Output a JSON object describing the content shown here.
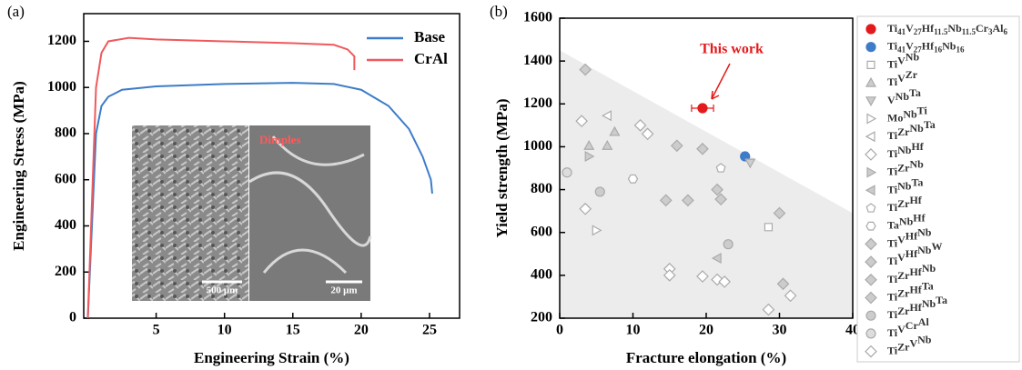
{
  "chart_data": [
    {
      "type": "line",
      "panel": "(a)",
      "xlabel": "Engineering Strain (%)",
      "ylabel": "Engineering Stress (MPa)",
      "xlim": [
        -0.3,
        27.2
      ],
      "ylim": [
        0,
        1320
      ],
      "xticks": [
        5,
        10,
        15,
        20,
        25
      ],
      "yticks": [
        0,
        200,
        400,
        600,
        800,
        1000,
        1200
      ],
      "series": [
        {
          "name": "Base",
          "color": "#3d7cc9",
          "x": [
            0,
            0.3,
            0.6,
            1,
            1.5,
            2.5,
            5,
            10,
            15,
            18,
            20,
            22,
            23.5,
            24.5,
            25.1,
            25.2
          ],
          "values": [
            0,
            400,
            800,
            920,
            960,
            990,
            1005,
            1015,
            1020,
            1015,
            990,
            920,
            820,
            700,
            600,
            540
          ]
        },
        {
          "name": "CrAl",
          "color": "#f0595c",
          "x": [
            0,
            0.3,
            0.6,
            1,
            1.5,
            3,
            5,
            10,
            15,
            18,
            19,
            19.5,
            19.5
          ],
          "values": [
            0,
            500,
            1000,
            1150,
            1200,
            1215,
            1208,
            1200,
            1192,
            1185,
            1165,
            1135,
            1075
          ]
        }
      ],
      "inset": {
        "labels": [
          "Dimples",
          "500 μm",
          "20 μm"
        ]
      }
    },
    {
      "type": "scatter",
      "panel": "(b)",
      "xlabel": "Fracture elongation (%)",
      "ylabel": "Yield strength (MPa)",
      "xlim": [
        0,
        40
      ],
      "ylim": [
        200,
        1600
      ],
      "xticks": [
        0,
        10,
        20,
        30,
        40
      ],
      "yticks": [
        200,
        400,
        600,
        800,
        1000,
        1200,
        1400,
        1600
      ],
      "shade": {
        "x": [
          0,
          40
        ],
        "y": [
          1450,
          690
        ]
      },
      "annotation": "This work",
      "series": [
        {
          "name": "Ti41V27Hf11.5Nb11.5Cr3Al6",
          "marker": "circle",
          "color": "#e31a1c",
          "fill": "#e31a1c",
          "x": [
            19.5
          ],
          "values": [
            1180
          ],
          "xerr": [
            1.5
          ]
        },
        {
          "name": "Ti41V27Hf16Nb16",
          "marker": "circle",
          "color": "#3d7cc9",
          "fill": "#3d7cc9",
          "x": [
            25.3
          ],
          "values": [
            955
          ]
        },
        {
          "name": "TiVNb",
          "marker": "square",
          "color": "#aaaaaa",
          "fill": "#ffffff",
          "x": [
            28.5
          ],
          "values": [
            625
          ]
        },
        {
          "name": "TiVZr",
          "marker": "tri-up",
          "color": "#aaaaaa",
          "fill": "#cccccc",
          "x": [
            4,
            7.5,
            6.5
          ],
          "values": [
            1005,
            1070,
            1005
          ]
        },
        {
          "name": "VNbTa",
          "marker": "tri-down",
          "color": "#aaaaaa",
          "fill": "#cccccc",
          "x": [
            26
          ],
          "values": [
            925
          ]
        },
        {
          "name": "MoNbTi",
          "marker": "tri-right",
          "color": "#aaaaaa",
          "fill": "#ffffff",
          "x": [
            5
          ],
          "values": [
            610
          ]
        },
        {
          "name": "TiZrNbTa",
          "marker": "tri-left",
          "color": "#aaaaaa",
          "fill": "#ffffff",
          "x": [
            6.5
          ],
          "values": [
            1145
          ]
        },
        {
          "name": "TiNbHf",
          "marker": "diamond",
          "color": "#aaaaaa",
          "fill": "#ffffff",
          "x": [
            15,
            15,
            19.5,
            21.5,
            22.5
          ],
          "values": [
            430,
            400,
            395,
            380,
            370
          ]
        },
        {
          "name": "TiZrNb",
          "marker": "tri-right",
          "color": "#aaaaaa",
          "fill": "#cccccc",
          "x": [
            4
          ],
          "values": [
            955
          ]
        },
        {
          "name": "TiNbTa",
          "marker": "tri-left",
          "color": "#aaaaaa",
          "fill": "#cccccc",
          "x": [
            21.5
          ],
          "values": [
            480
          ]
        },
        {
          "name": "TiZrHf",
          "marker": "pentagon",
          "color": "#aaaaaa",
          "fill": "#ffffff",
          "x": [
            22
          ],
          "values": [
            900
          ]
        },
        {
          "name": "TaNbHf",
          "marker": "hexagon",
          "color": "#aaaaaa",
          "fill": "#ffffff",
          "x": [
            10
          ],
          "values": [
            850
          ]
        },
        {
          "name": "TiVHfNb",
          "marker": "diamond",
          "color": "#aaaaaa",
          "fill": "#cccccc",
          "x": [
            14.5,
            17.5,
            16,
            19.5,
            21.5,
            22
          ],
          "values": [
            750,
            750,
            1005,
            990,
            800,
            755
          ]
        },
        {
          "name": "TiVHfNbW",
          "marker": "diamond",
          "color": "#aaaaaa",
          "fill": "#cccccc",
          "x": [
            3.5
          ],
          "values": [
            1360
          ]
        },
        {
          "name": "TiZrHfNb",
          "marker": "diamond",
          "color": "#aaaaaa",
          "fill": "#cccccc",
          "x": [
            30
          ],
          "values": [
            690
          ]
        },
        {
          "name": "TiZrHfTa",
          "marker": "diamond",
          "color": "#aaaaaa",
          "fill": "#cccccc",
          "x": [
            30.5
          ],
          "values": [
            360
          ]
        },
        {
          "name": "TiZrHfNbTa",
          "marker": "circle",
          "color": "#aaaaaa",
          "fill": "#cccccc",
          "x": [
            5.5,
            23
          ],
          "values": [
            790,
            545
          ]
        },
        {
          "name": "TiVCrAl",
          "marker": "circle",
          "color": "#aaaaaa",
          "fill": "#dddddd",
          "x": [
            1
          ],
          "values": [
            880
          ]
        },
        {
          "name": "TiZrVNb",
          "marker": "diamond",
          "color": "#aaaaaa",
          "fill": "#ffffff",
          "x": [
            3.5,
            11,
            12,
            28.5,
            31.5,
            3
          ],
          "values": [
            710,
            1100,
            1060,
            240,
            305,
            1120
          ]
        }
      ]
    }
  ]
}
